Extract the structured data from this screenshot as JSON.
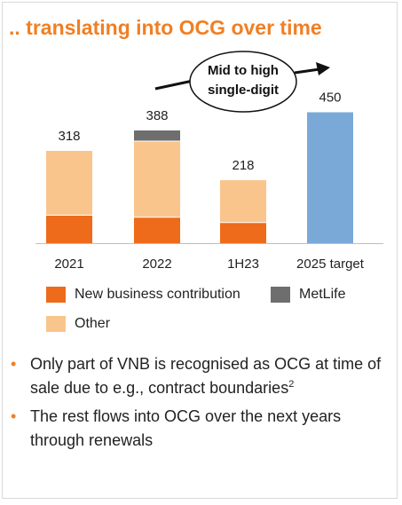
{
  "title": ".. translating into OCG over time",
  "callout": {
    "line1": "Mid to high",
    "line2": "single-digit"
  },
  "chart_data": {
    "type": "bar",
    "stacked": true,
    "categories": [
      "2021",
      "2022",
      "1H23",
      "2025 target"
    ],
    "totals": [
      318,
      388,
      218,
      450
    ],
    "series": [
      {
        "name": "New business contribution",
        "color": "#ed6b1a",
        "values": [
          97,
          90,
          72,
          null
        ]
      },
      {
        "name": "Other",
        "color": "#fac58d",
        "values": [
          221,
          260,
          146,
          null
        ]
      },
      {
        "name": "MetLife",
        "color": "#6e6e6e",
        "values": [
          null,
          38,
          null,
          null
        ]
      },
      {
        "name": "",
        "color": "#7aa9d8",
        "values": [
          null,
          null,
          null,
          450
        ]
      }
    ],
    "ylim": [
      0,
      480
    ],
    "grid": false,
    "legend_position": "bottom"
  },
  "legend": {
    "items": [
      {
        "label": "New business contribution",
        "color": "#ed6b1a"
      },
      {
        "label": "MetLife",
        "color": "#6e6e6e"
      },
      {
        "label": "Other",
        "color": "#fac58d"
      }
    ]
  },
  "bullets": [
    {
      "text": "Only part of VNB is recognised as OCG at time of sale due to e.g., contract boundaries",
      "sup": "2"
    },
    {
      "text": "The rest flows into OCG over the next years through renewals",
      "sup": ""
    }
  ],
  "colors": {
    "accent": "#f07f24",
    "target_bar": "#7aa9d8"
  }
}
